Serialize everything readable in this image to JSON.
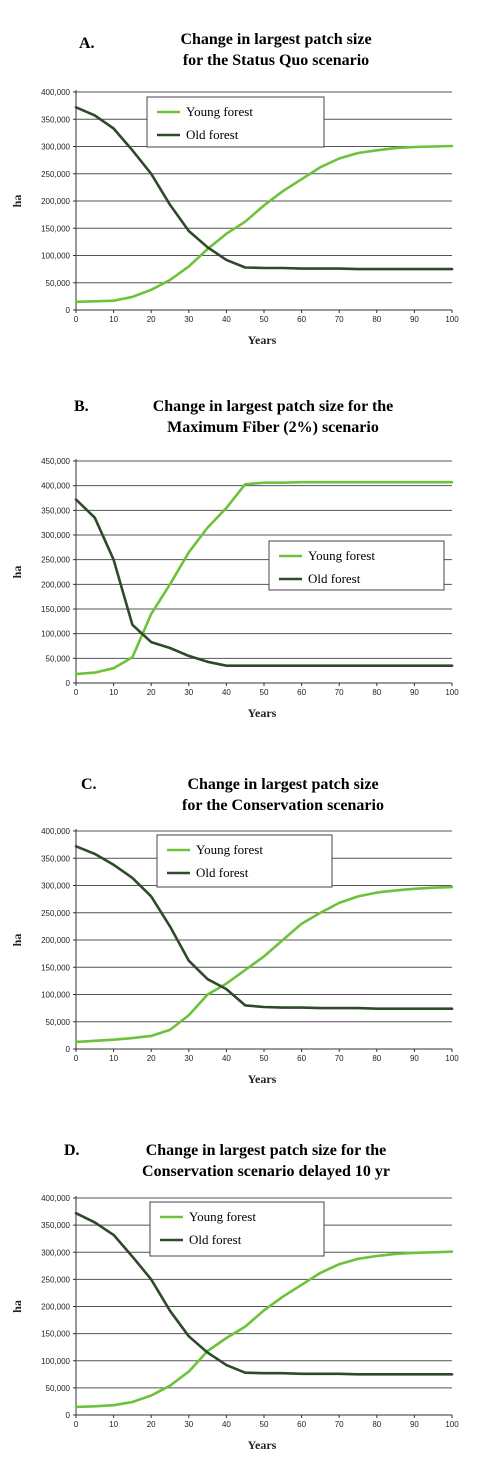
{
  "colors": {
    "young": "#6cc33a",
    "old": "#2f4a2a",
    "grid": "#555555",
    "axis": "#333333"
  },
  "chart_data": [
    {
      "type": "line",
      "letter": "A.",
      "title_lines": [
        "Change in largest patch size",
        "for the Status Quo scenario"
      ],
      "xlabel": "Years",
      "ylabel": "ha",
      "xlim": [
        0,
        100
      ],
      "ylim": [
        0,
        400000
      ],
      "xticks": [
        0,
        10,
        20,
        30,
        40,
        50,
        60,
        70,
        80,
        90,
        100
      ],
      "yticks": [
        0,
        50000,
        100000,
        150000,
        200000,
        250000,
        300000,
        350000,
        400000
      ],
      "ytick_labels": [
        "0",
        "50,000",
        "100,000",
        "150,000",
        "200,000",
        "250,000",
        "300,000",
        "350,000",
        "400,000"
      ],
      "legend_position": "top-center",
      "x": [
        0,
        5,
        10,
        15,
        20,
        25,
        30,
        35,
        40,
        45,
        50,
        55,
        60,
        65,
        70,
        75,
        80,
        85,
        90,
        95,
        100
      ],
      "series": [
        {
          "name": "Young forest",
          "color_key": "young",
          "values": [
            15000,
            16000,
            17000,
            24000,
            37000,
            55000,
            80000,
            112000,
            140000,
            162000,
            192000,
            218000,
            240000,
            262000,
            278000,
            288000,
            293000,
            297000,
            299000,
            300000,
            301000
          ]
        },
        {
          "name": "Old forest",
          "color_key": "old",
          "values": [
            372000,
            357000,
            333000,
            293000,
            250000,
            193000,
            145000,
            115000,
            92000,
            78000,
            77000,
            77000,
            76000,
            76000,
            76000,
            75000,
            75000,
            75000,
            75000,
            75000,
            75000
          ]
        }
      ]
    },
    {
      "type": "line",
      "letter": "B.",
      "title_lines": [
        "Change in largest patch size for the",
        "Maximum Fiber (2%) scenario"
      ],
      "xlabel": "Years",
      "ylabel": "ha",
      "xlim": [
        0,
        100
      ],
      "ylim": [
        0,
        450000
      ],
      "xticks": [
        0,
        10,
        20,
        30,
        40,
        50,
        60,
        70,
        80,
        90,
        100
      ],
      "yticks": [
        0,
        50000,
        100000,
        150000,
        200000,
        250000,
        300000,
        350000,
        400000,
        450000
      ],
      "ytick_labels": [
        "0",
        "50,000",
        "100,000",
        "150,000",
        "200,000",
        "250,000",
        "300,000",
        "350,000",
        "400,000",
        "450,000"
      ],
      "legend_position": "center-right",
      "x": [
        0,
        5,
        10,
        15,
        20,
        25,
        30,
        35,
        40,
        45,
        50,
        55,
        60,
        65,
        70,
        75,
        80,
        85,
        90,
        95,
        100
      ],
      "series": [
        {
          "name": "Young forest",
          "color_key": "young",
          "values": [
            18000,
            21000,
            30000,
            52000,
            140000,
            200000,
            265000,
            315000,
            355000,
            403000,
            406000,
            406000,
            407000,
            407000,
            407000,
            407000,
            407000,
            407000,
            407000,
            407000,
            407000
          ]
        },
        {
          "name": "Old forest",
          "color_key": "old",
          "values": [
            372000,
            335000,
            250000,
            118000,
            83000,
            71000,
            55000,
            43000,
            35000,
            35000,
            35000,
            35000,
            35000,
            35000,
            35000,
            35000,
            35000,
            35000,
            35000,
            35000,
            35000
          ]
        }
      ]
    },
    {
      "type": "line",
      "letter": "C.",
      "title_lines": [
        "Change in largest patch size",
        "for the Conservation scenario"
      ],
      "xlabel": "Years",
      "ylabel": "ha",
      "xlim": [
        0,
        100
      ],
      "ylim": [
        0,
        400000
      ],
      "xticks": [
        0,
        10,
        20,
        30,
        40,
        50,
        60,
        70,
        80,
        90,
        100
      ],
      "yticks": [
        0,
        50000,
        100000,
        150000,
        200000,
        250000,
        300000,
        350000,
        400000
      ],
      "ytick_labels": [
        "0",
        "50,000",
        "100,000",
        "150,000",
        "200,000",
        "250,000",
        "300,000",
        "350,000",
        "400,000"
      ],
      "legend_position": "top-center",
      "x": [
        0,
        5,
        10,
        15,
        20,
        25,
        30,
        35,
        40,
        45,
        50,
        55,
        60,
        65,
        70,
        75,
        80,
        85,
        90,
        95,
        100
      ],
      "series": [
        {
          "name": "Young forest",
          "color_key": "young",
          "values": [
            13000,
            15000,
            17000,
            20000,
            24000,
            35000,
            62000,
            100000,
            120000,
            145000,
            170000,
            200000,
            230000,
            250000,
            268000,
            280000,
            287000,
            291000,
            294000,
            296000,
            297000
          ]
        },
        {
          "name": "Old forest",
          "color_key": "old",
          "values": [
            372000,
            358000,
            338000,
            314000,
            280000,
            225000,
            162000,
            128000,
            110000,
            80000,
            77000,
            76000,
            76000,
            75000,
            75000,
            75000,
            74000,
            74000,
            74000,
            74000,
            74000
          ]
        }
      ]
    },
    {
      "type": "line",
      "letter": "D.",
      "title_lines": [
        "Change in largest patch size for the",
        "Conservation scenario delayed 10 yr"
      ],
      "xlabel": "Years",
      "ylabel": "ha",
      "xlim": [
        0,
        100
      ],
      "ylim": [
        0,
        400000
      ],
      "xticks": [
        0,
        10,
        20,
        30,
        40,
        50,
        60,
        70,
        80,
        90,
        100
      ],
      "yticks": [
        0,
        50000,
        100000,
        150000,
        200000,
        250000,
        300000,
        350000,
        400000
      ],
      "ytick_labels": [
        "0",
        "50,000",
        "100,000",
        "150,000",
        "200,000",
        "250,000",
        "300,000",
        "350,000",
        "400,000"
      ],
      "legend_position": "top-center",
      "x": [
        0,
        5,
        10,
        15,
        20,
        25,
        30,
        35,
        40,
        45,
        50,
        55,
        60,
        65,
        70,
        75,
        80,
        85,
        90,
        95,
        100
      ],
      "series": [
        {
          "name": "Young forest",
          "color_key": "young",
          "values": [
            15000,
            16000,
            18000,
            24000,
            36000,
            54000,
            80000,
            118000,
            142000,
            163000,
            193000,
            218000,
            240000,
            262000,
            278000,
            288000,
            293000,
            297000,
            299000,
            300000,
            301000
          ]
        },
        {
          "name": "Old forest",
          "color_key": "old",
          "values": [
            372000,
            355000,
            332000,
            292000,
            250000,
            192000,
            145000,
            115000,
            92000,
            78000,
            77000,
            77000,
            76000,
            76000,
            76000,
            75000,
            75000,
            75000,
            75000,
            75000,
            75000
          ]
        }
      ]
    }
  ]
}
